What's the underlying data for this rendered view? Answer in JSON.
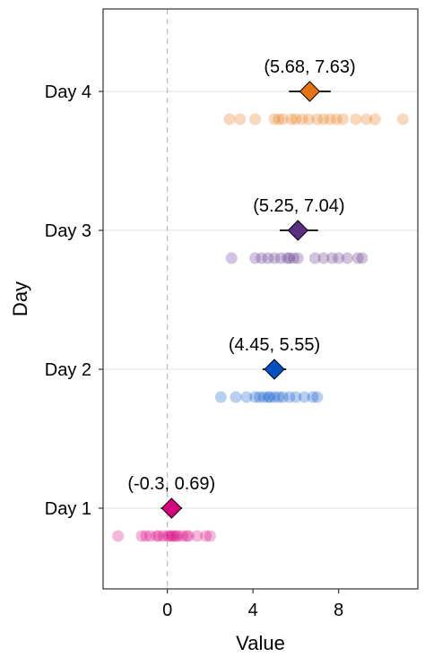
{
  "chart_data": {
    "type": "scatter",
    "title": "",
    "xlabel": "Value",
    "ylabel": "Day",
    "xlim": [
      -3,
      11.7
    ],
    "x_ticks": [
      0,
      4,
      8
    ],
    "x_tick_labels": [
      "0",
      "4",
      "8"
    ],
    "reference_line_x": 0,
    "grid": "horizontal major only",
    "categories": [
      "Day 1",
      "Day 2",
      "Day 3",
      "Day 4"
    ],
    "series": [
      {
        "category": "Day 1",
        "color": "#d6007e",
        "mean": 0.2,
        "ci": [
          -0.3,
          0.69
        ],
        "ci_label": "(-0.3, 0.69)",
        "points": [
          -2.3,
          -1.2,
          -1.0,
          -0.8,
          -0.5,
          -0.4,
          -0.2,
          0.0,
          0.1,
          0.2,
          0.3,
          0.4,
          0.5,
          0.7,
          0.9,
          1.0,
          1.4,
          1.8,
          2.0
        ]
      },
      {
        "category": "Day 2",
        "color": "#0052c4",
        "mean": 5.0,
        "ci": [
          4.45,
          5.55
        ],
        "ci_label": "(4.45, 5.55)",
        "points": [
          2.5,
          3.2,
          3.7,
          4.1,
          4.3,
          4.5,
          4.7,
          4.8,
          5.0,
          5.2,
          5.4,
          5.7,
          6.0,
          6.4,
          6.8,
          7.0
        ]
      },
      {
        "category": "Day 3",
        "color": "#5b2f84",
        "mean": 6.1,
        "ci": [
          5.25,
          7.04
        ],
        "ci_label": "(5.25, 7.04)",
        "points": [
          3.0,
          4.1,
          4.4,
          4.7,
          5.0,
          5.3,
          5.6,
          5.7,
          5.9,
          6.1,
          6.9,
          7.3,
          7.7,
          8.0,
          8.4,
          8.9,
          9.1
        ]
      },
      {
        "category": "Day 4",
        "color": "#e6730f",
        "mean": 6.65,
        "ci": [
          5.68,
          7.63
        ],
        "ci_label": "(5.68, 7.63)",
        "points": [
          2.9,
          3.4,
          4.1,
          5.0,
          5.2,
          5.4,
          5.8,
          6.0,
          6.3,
          6.6,
          7.0,
          7.3,
          7.6,
          7.9,
          8.2,
          8.8,
          9.3,
          9.7,
          11.0
        ]
      }
    ]
  }
}
